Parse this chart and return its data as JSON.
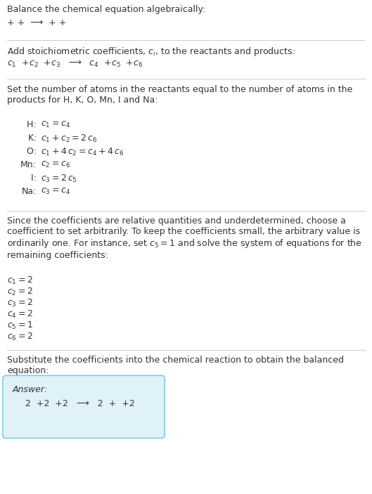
{
  "title": "Balance the chemical equation algebraically:",
  "section1_line": "+ +  ⟶  + +",
  "section2_header": "Add stoichiometric coefficients, $c_i$, to the reactants and products:",
  "section2_line": "$c_1$  +$c_2$  +$c_3$   ⟶   $c_4$  +$c_5$  +$c_6$",
  "section3_header": "Set the number of atoms in the reactants equal to the number of atoms in the\nproducts for H, K, O, Mn, I and Na:",
  "equations": [
    [
      "  H:",
      "$c_1 = c_4$"
    ],
    [
      "  K:",
      "$c_1 + c_2 = 2\\,c_6$"
    ],
    [
      "  O:",
      "$c_1 + 4\\,c_2 = c_4 + 4\\,c_6$"
    ],
    [
      "Mn:",
      "$c_2 = c_6$"
    ],
    [
      "    I:",
      "$c_3 = 2\\,c_5$"
    ],
    [
      "Na:",
      "$c_3 = c_4$"
    ]
  ],
  "section4_header": "Since the coefficients are relative quantities and underdetermined, choose a\ncoefficient to set arbitrarily. To keep the coefficients small, the arbitrary value is\nordinarily one. For instance, set $c_5 = 1$ and solve the system of equations for the\nremaining coefficients:",
  "coefficients": [
    "$c_1 = 2$",
    "$c_2 = 2$",
    "$c_3 = 2$",
    "$c_4 = 2$",
    "$c_5 = 1$",
    "$c_6 = 2$"
  ],
  "section5_header": "Substitute the coefficients into the chemical reaction to obtain the balanced\nequation:",
  "answer_label": "Answer:",
  "answer_line": "  2  +2  +2   ⟶   2  +  +2",
  "bg_color": "#ffffff",
  "text_color": "#333333",
  "answer_box_color": "#dff2f8",
  "answer_box_border": "#7ecfe0",
  "line_color": "#cccccc"
}
